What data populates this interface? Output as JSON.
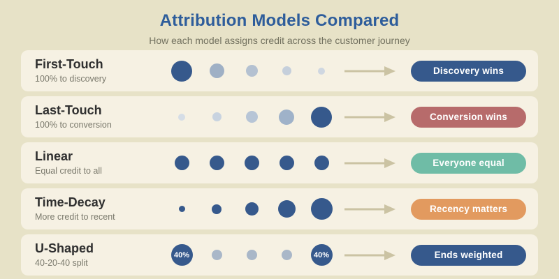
{
  "page": {
    "title": "Attribution Models Compared",
    "subtitle": "How each model assigns credit across the customer journey"
  },
  "colors": {
    "background": "#e7e2c7",
    "card": "#f6f1e3",
    "title_blue": "#2e5d9b",
    "dark_blue": "#36598c",
    "arrow": "#cbc3a3"
  },
  "rows": [
    {
      "name": "First-Touch",
      "description": "100% to discovery",
      "badge": {
        "label": "Discovery wins",
        "color": "#36598c"
      },
      "dots": [
        {
          "size": 30,
          "color": "#36598c",
          "label": ""
        },
        {
          "size": 21,
          "color": "#9fb0c5",
          "label": ""
        },
        {
          "size": 17,
          "color": "#b4c1d1",
          "label": ""
        },
        {
          "size": 13,
          "color": "#c5cfdb",
          "label": ""
        },
        {
          "size": 10,
          "color": "#cfd7e1",
          "label": ""
        }
      ]
    },
    {
      "name": "Last-Touch",
      "description": "100% to conversion",
      "badge": {
        "label": "Conversion wins",
        "color": "#b76b6b"
      },
      "dots": [
        {
          "size": 10,
          "color": "#d5dde6",
          "label": ""
        },
        {
          "size": 13,
          "color": "#c8d3e0",
          "label": ""
        },
        {
          "size": 17,
          "color": "#b7c5d6",
          "label": ""
        },
        {
          "size": 22,
          "color": "#9fb2c9",
          "label": ""
        },
        {
          "size": 30,
          "color": "#36598c",
          "label": ""
        }
      ]
    },
    {
      "name": "Linear",
      "description": "Equal credit to all",
      "badge": {
        "label": "Everyone equal",
        "color": "#6fbca6"
      },
      "dots": [
        {
          "size": 21,
          "color": "#36598c",
          "label": ""
        },
        {
          "size": 21,
          "color": "#36598c",
          "label": ""
        },
        {
          "size": 21,
          "color": "#36598c",
          "label": ""
        },
        {
          "size": 21,
          "color": "#36598c",
          "label": ""
        },
        {
          "size": 21,
          "color": "#36598c",
          "label": ""
        }
      ]
    },
    {
      "name": "Time-Decay",
      "description": "More credit to recent",
      "badge": {
        "label": "Recency matters",
        "color": "#e29a5f"
      },
      "dots": [
        {
          "size": 9,
          "color": "#36598c",
          "label": ""
        },
        {
          "size": 14,
          "color": "#36598c",
          "label": ""
        },
        {
          "size": 19,
          "color": "#36598c",
          "label": ""
        },
        {
          "size": 25,
          "color": "#36598c",
          "label": ""
        },
        {
          "size": 31,
          "color": "#36598c",
          "label": ""
        }
      ]
    },
    {
      "name": "U-Shaped",
      "description": "40-20-40 split",
      "badge": {
        "label": "Ends weighted",
        "color": "#36598c"
      },
      "dots": [
        {
          "size": 31,
          "color": "#36598c",
          "label": "40%"
        },
        {
          "size": 15,
          "color": "#a9b7c8",
          "label": ""
        },
        {
          "size": 15,
          "color": "#a9b7c8",
          "label": ""
        },
        {
          "size": 15,
          "color": "#a9b7c8",
          "label": ""
        },
        {
          "size": 31,
          "color": "#36598c",
          "label": "40%"
        }
      ]
    }
  ]
}
